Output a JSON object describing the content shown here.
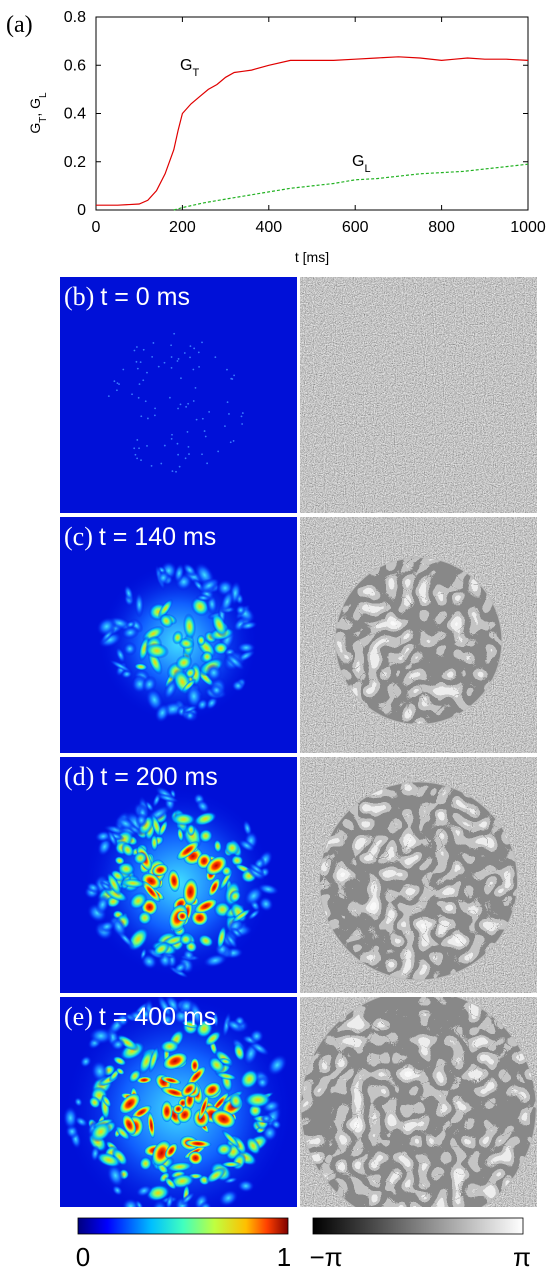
{
  "figure_label_a": "(a)",
  "chart_data": {
    "type": "line",
    "xlabel": "t [ms]",
    "ylabel_main": "G",
    "ylabel_sub1": "T",
    "ylabel_sep": ", G",
    "ylabel_sub2": "L",
    "xlim": [
      0,
      1000
    ],
    "ylim": [
      0,
      0.8
    ],
    "x_ticks": [
      0,
      200,
      400,
      600,
      800,
      1000
    ],
    "y_ticks": [
      0,
      0.2,
      0.4,
      0.6,
      0.8
    ],
    "x_tick_labels": [
      "0",
      "200",
      "400",
      "600",
      "800",
      "1000"
    ],
    "y_tick_labels": [
      "0",
      "0.2",
      "0.4",
      "0.6",
      "0.8"
    ],
    "series": [
      {
        "label_main": "G",
        "label_sub": "T",
        "color": "#e00000",
        "style": "solid",
        "x": [
          0,
          50,
          100,
          120,
          140,
          160,
          180,
          190,
          200,
          220,
          240,
          260,
          280,
          300,
          320,
          340,
          360,
          400,
          450,
          500,
          550,
          600,
          650,
          700,
          750,
          800,
          830,
          860,
          900,
          950,
          1000
        ],
        "y": [
          0.02,
          0.02,
          0.025,
          0.04,
          0.08,
          0.15,
          0.25,
          0.33,
          0.4,
          0.44,
          0.47,
          0.5,
          0.52,
          0.55,
          0.57,
          0.575,
          0.58,
          0.6,
          0.62,
          0.62,
          0.62,
          0.625,
          0.63,
          0.635,
          0.63,
          0.62,
          0.625,
          0.63,
          0.625,
          0.625,
          0.62
        ]
      },
      {
        "label_main": "G",
        "label_sub": "L",
        "color": "#22b222",
        "style": "dashed",
        "x": [
          180,
          200,
          250,
          300,
          350,
          400,
          450,
          500,
          550,
          600,
          650,
          700,
          750,
          800,
          850,
          900,
          950,
          1000
        ],
        "y": [
          0.0,
          0.01,
          0.03,
          0.045,
          0.06,
          0.075,
          0.09,
          0.1,
          0.11,
          0.125,
          0.13,
          0.14,
          0.15,
          0.155,
          0.16,
          0.17,
          0.18,
          0.19
        ]
      }
    ]
  },
  "panels": [
    {
      "label": "(b)",
      "time": "t = 0 ms",
      "intensity": 0.0,
      "radius": 0.0
    },
    {
      "label": "(c)",
      "time": "t = 140 ms",
      "intensity": 0.45,
      "radius": 0.32
    },
    {
      "label": "(d)",
      "time": "t = 200 ms",
      "intensity": 0.85,
      "radius": 0.38
    },
    {
      "label": "(e)",
      "time": "t = 400 ms",
      "intensity": 0.9,
      "radius": 0.46
    }
  ],
  "colorbars": {
    "density_min": "0",
    "density_max": "1",
    "phase_min": "−π",
    "phase_max": "π",
    "density_colors": [
      "#00007f",
      "#0000ff",
      "#00bfff",
      "#40ffbf",
      "#bfff40",
      "#ffbf00",
      "#ff4000",
      "#7f0000"
    ],
    "phase_colors": [
      "#000000",
      "#ffffff"
    ]
  }
}
